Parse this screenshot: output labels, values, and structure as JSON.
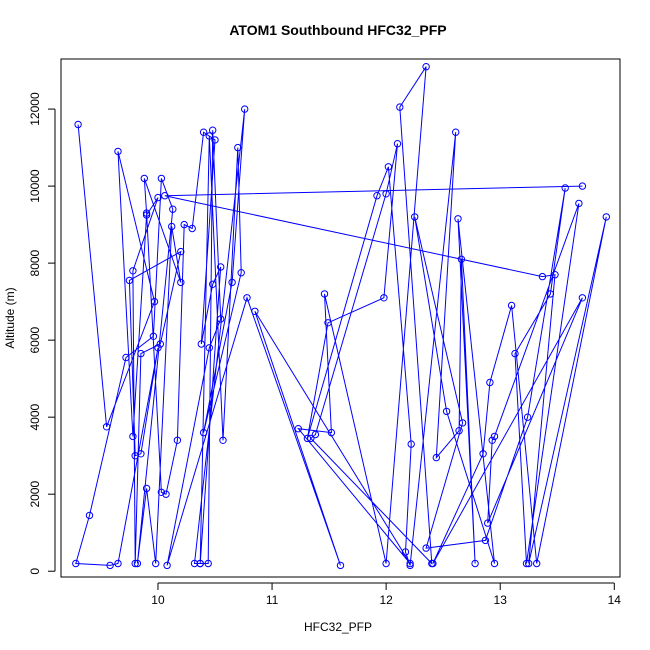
{
  "chart_data": {
    "type": "line",
    "title": "ATOM1 Southbound HFC32_PFP",
    "xlabel": "HFC32_PFP",
    "ylabel": "Altitude (m)",
    "xlim": [
      9.15,
      14.05
    ],
    "ylim": [
      -150,
      13300
    ],
    "xticks": [
      10,
      11,
      12,
      13,
      14
    ],
    "yticks": [
      0,
      2000,
      4000,
      6000,
      8000,
      10000,
      12000
    ],
    "colors": {
      "series": "#0000ff",
      "axis": "#000000",
      "background": "#ffffff"
    },
    "series": [
      {
        "x": [
          9.3,
          9.55,
          9.97,
          9.65,
          9.78,
          9.9,
          10.0,
          9.78,
          9.8,
          9.85,
          10.02,
          10.2,
          9.75,
          9.8,
          9.85,
          10.0,
          9.65,
          9.58,
          9.28,
          9.4,
          9.72,
          9.96,
          10.03,
          10.13,
          9.82,
          9.9,
          9.98,
          10.12,
          10.2,
          9.88,
          9.9,
          10.03,
          10.07,
          10.17,
          10.23,
          10.3,
          10.4,
          10.5,
          10.38,
          10.48,
          10.55,
          10.37,
          10.45,
          10.57,
          10.7,
          10.73,
          10.4,
          10.65,
          10.76,
          10.32,
          10.37,
          10.44,
          10.48,
          10.55,
          10.45,
          10.08,
          10.78,
          11.6,
          10.85,
          12.21,
          11.23,
          11.52,
          11.46,
          12.0,
          12.35,
          12.12,
          12.4,
          11.34,
          11.38,
          12.0,
          12.1,
          11.98,
          11.49,
          11.31,
          11.92,
          12.02,
          12.22,
          12.17,
          12.21,
          12.61,
          12.44,
          12.64,
          12.66,
          12.78,
          12.63,
          12.95,
          12.53,
          12.25,
          12.67,
          12.35,
          12.87,
          13.24,
          13.57,
          13.44,
          13.13,
          13.23,
          13.69,
          12.95,
          12.93,
          12.89,
          13.72,
          12.41,
          12.85,
          12.91,
          13.1,
          13.32,
          13.93,
          13.25,
          13.48,
          13.37,
          10.06,
          13.72
        ],
        "y": [
          11600,
          3750,
          7000,
          10900,
          3500,
          9250,
          9700,
          7800,
          200,
          5650,
          5900,
          8300,
          7550,
          3000,
          3050,
          5800,
          200,
          150,
          200,
          1450,
          5550,
          6100,
          10200,
          9400,
          200,
          2150,
          200,
          8950,
          7500,
          10200,
          9300,
          2050,
          2000,
          3400,
          9000,
          8900,
          11400,
          11200,
          5900,
          7450,
          7900,
          200,
          11300,
          3400,
          11000,
          7750,
          3600,
          7500,
          12000,
          200,
          200,
          200,
          11450,
          6550,
          5800,
          150,
          7100,
          150,
          6750,
          200,
          3700,
          3600,
          7200,
          200,
          13100,
          12050,
          200,
          3450,
          3550,
          9800,
          11100,
          7100,
          6450,
          3450,
          9750,
          10500,
          3300,
          500,
          150,
          11400,
          2950,
          3650,
          8100,
          200,
          9150,
          200,
          4150,
          9200,
          3850,
          600,
          800,
          4000,
          9950,
          7200,
          5650,
          200,
          9550,
          3500,
          3400,
          1250,
          7100,
          200,
          3050,
          4900,
          6900,
          200,
          9200,
          200,
          7700,
          7650,
          9750,
          10000
        ]
      }
    ]
  }
}
